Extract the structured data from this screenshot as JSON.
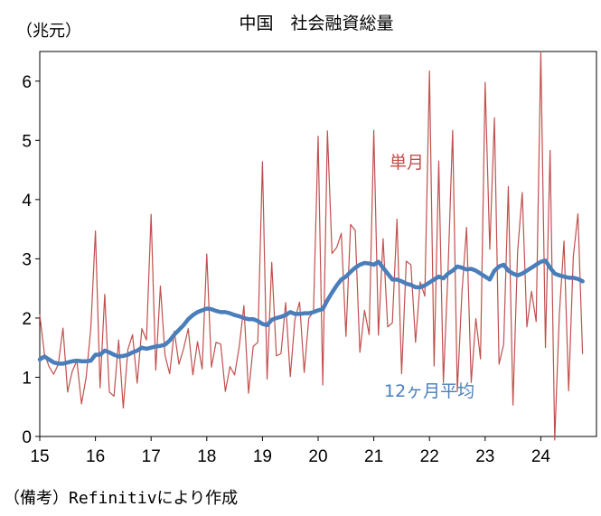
{
  "chart_data": {
    "type": "line",
    "title": "中国　社会融資総量",
    "ylabel": "（兆元）",
    "ylim": [
      0,
      6.5
    ],
    "yticks": [
      "0",
      "1",
      "2",
      "3",
      "4",
      "5",
      "6"
    ],
    "xlim": [
      2015,
      2025
    ],
    "xticks": [
      {
        "x": 2015,
        "label": "15"
      },
      {
        "x": 2016,
        "label": "16"
      },
      {
        "x": 2017,
        "label": "17"
      },
      {
        "x": 2018,
        "label": "18"
      },
      {
        "x": 2019,
        "label": "19"
      },
      {
        "x": 2020,
        "label": "20"
      },
      {
        "x": 2021,
        "label": "21"
      },
      {
        "x": 2022,
        "label": "22"
      },
      {
        "x": 2023,
        "label": "23"
      },
      {
        "x": 2024,
        "label": "24"
      }
    ],
    "series": [
      {
        "name": "単月",
        "color": "#c0504d",
        "x_start": 2015.0,
        "step": 0.0833333,
        "values": [
          2.05,
          1.4,
          1.18,
          1.05,
          1.22,
          1.83,
          0.75,
          1.1,
          1.28,
          0.55,
          1.0,
          1.82,
          3.47,
          0.82,
          2.4,
          0.75,
          0.68,
          1.63,
          0.48,
          1.47,
          1.72,
          0.9,
          1.82,
          1.63,
          3.75,
          1.12,
          2.54,
          1.37,
          1.06,
          1.78,
          1.22,
          1.48,
          1.82,
          1.04,
          1.6,
          1.14,
          3.08,
          1.17,
          1.59,
          1.56,
          0.76,
          1.18,
          1.04,
          1.52,
          2.21,
          0.73,
          1.52,
          1.59,
          4.64,
          0.97,
          2.94,
          1.36,
          1.4,
          2.26,
          1.01,
          1.98,
          2.27,
          1.08,
          2.0,
          2.1,
          5.07,
          0.87,
          5.16,
          3.09,
          3.19,
          3.43,
          1.69,
          3.58,
          3.48,
          1.42,
          2.13,
          1.72,
          5.17,
          1.71,
          3.34,
          1.85,
          1.92,
          3.67,
          1.06,
          2.96,
          2.9,
          1.59,
          2.61,
          2.37,
          6.17,
          1.19,
          4.65,
          0.91,
          2.79,
          5.17,
          0.76,
          2.43,
          3.53,
          0.91,
          1.99,
          1.31,
          5.98,
          3.16,
          5.38,
          1.22,
          1.56,
          4.22,
          0.53,
          3.12,
          4.12,
          1.85,
          2.45,
          1.94,
          6.5,
          1.5,
          4.83,
          -0.06,
          2.07,
          3.3,
          0.77,
          3.03,
          3.76,
          1.4
        ]
      },
      {
        "name": "12ヶ月平均",
        "color": "#4a7ebb",
        "x_start": 2015.0,
        "step": 0.0833333,
        "values": [
          1.3,
          1.35,
          1.3,
          1.25,
          1.23,
          1.23,
          1.25,
          1.27,
          1.28,
          1.27,
          1.27,
          1.28,
          1.38,
          1.38,
          1.45,
          1.42,
          1.38,
          1.35,
          1.36,
          1.38,
          1.42,
          1.45,
          1.5,
          1.48,
          1.5,
          1.52,
          1.53,
          1.55,
          1.62,
          1.72,
          1.8,
          1.88,
          1.98,
          2.05,
          2.1,
          2.13,
          2.16,
          2.15,
          2.12,
          2.1,
          2.1,
          2.08,
          2.05,
          2.03,
          2.0,
          1.98,
          1.98,
          1.95,
          1.9,
          1.88,
          1.97,
          2.0,
          2.02,
          2.05,
          2.1,
          2.07,
          2.07,
          2.08,
          2.08,
          2.1,
          2.13,
          2.15,
          2.3,
          2.43,
          2.55,
          2.65,
          2.7,
          2.78,
          2.85,
          2.9,
          2.93,
          2.92,
          2.9,
          2.95,
          2.85,
          2.75,
          2.65,
          2.65,
          2.62,
          2.58,
          2.56,
          2.52,
          2.52,
          2.55,
          2.6,
          2.65,
          2.7,
          2.67,
          2.75,
          2.8,
          2.87,
          2.85,
          2.82,
          2.83,
          2.8,
          2.75,
          2.7,
          2.65,
          2.8,
          2.87,
          2.9,
          2.8,
          2.75,
          2.72,
          2.75,
          2.8,
          2.85,
          2.9,
          2.95,
          2.97,
          2.85,
          2.75,
          2.72,
          2.7,
          2.68,
          2.68,
          2.66,
          2.62
        ]
      }
    ],
    "annotations": {
      "monthly_label": "単月",
      "avg_label": "12ヶ月平均"
    }
  },
  "source": "（備考）Refinitivにより作成"
}
